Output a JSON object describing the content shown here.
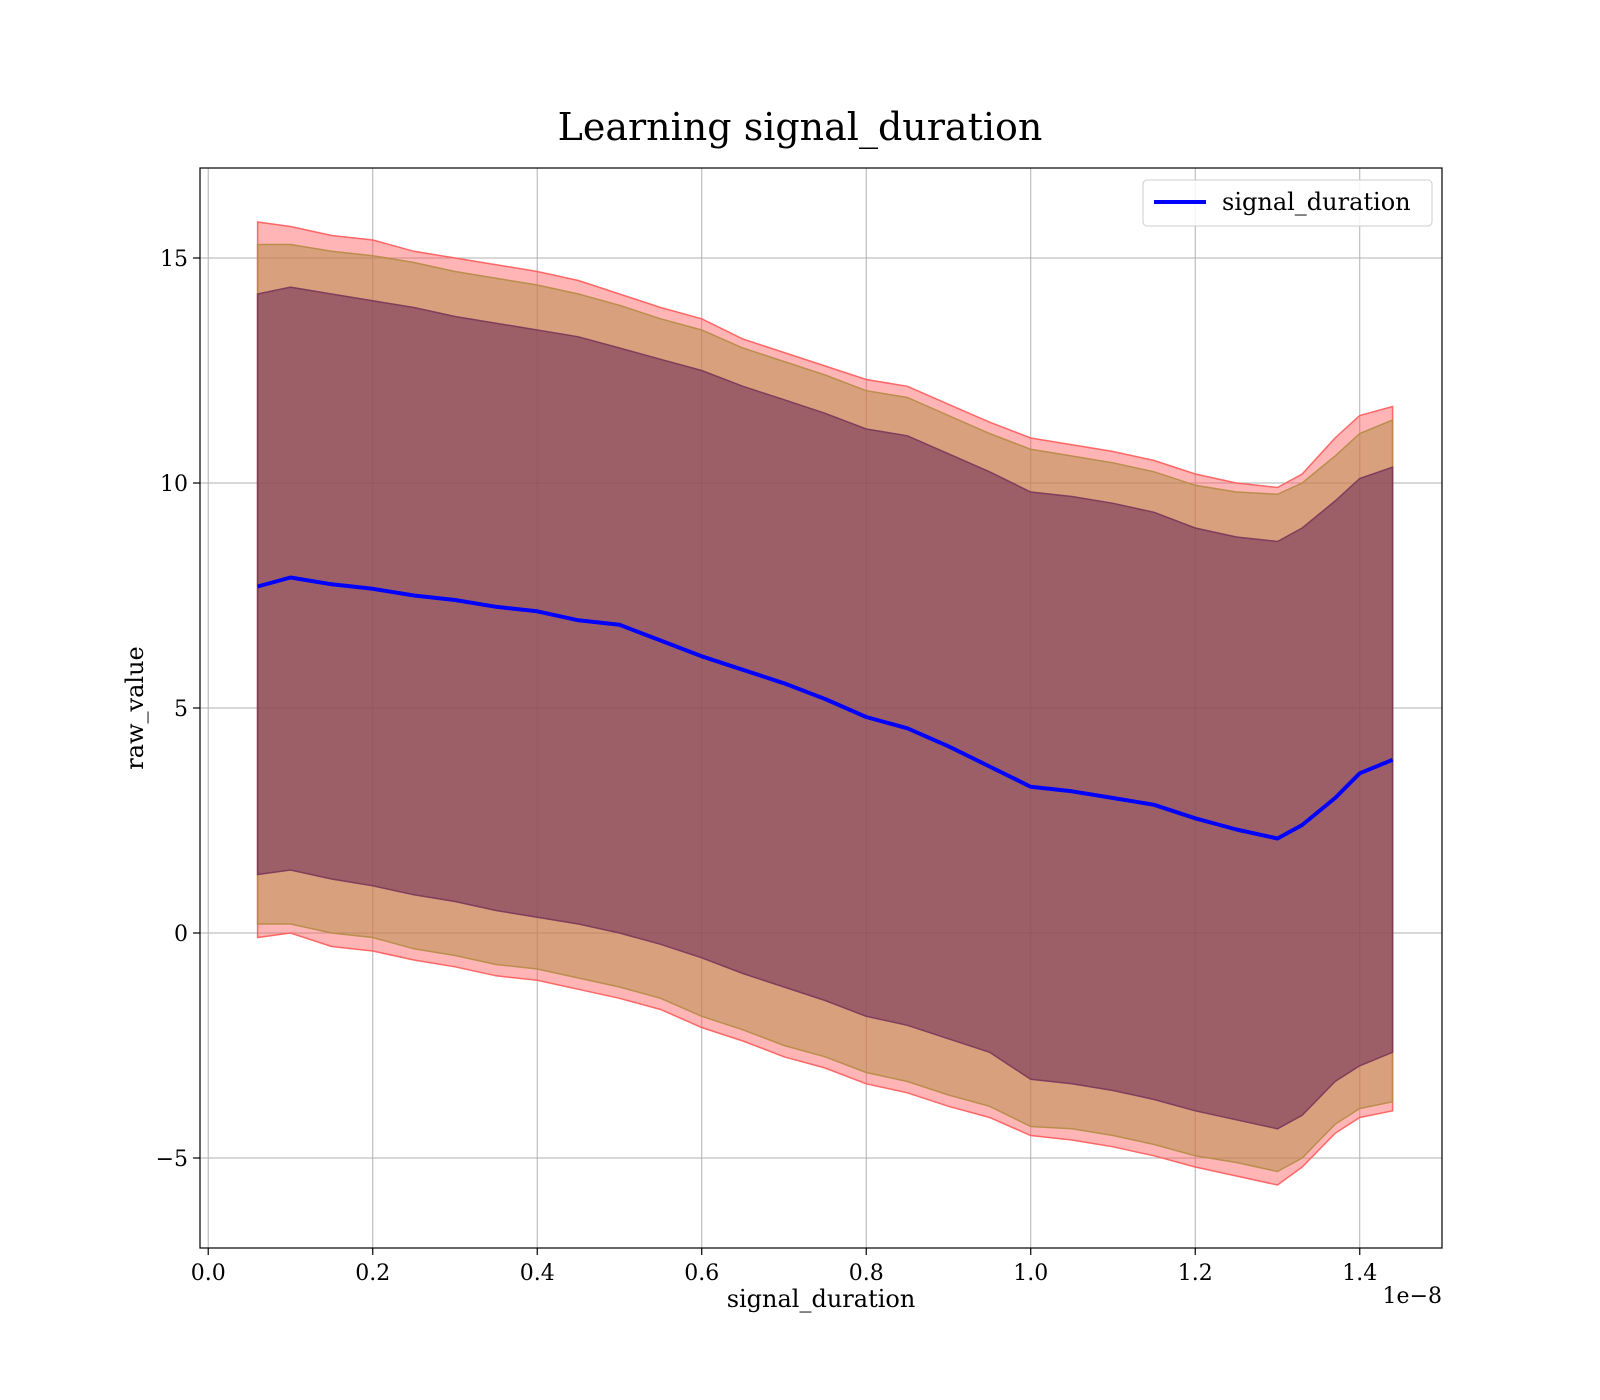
{
  "chart_data": {
    "type": "line",
    "title": "Learning signal_duration",
    "xlabel": "signal_duration",
    "ylabel": "raw_value",
    "x_offset_text": "1e−8",
    "xlim": [
      -0.01,
      1.5
    ],
    "ylim": [
      -7.0,
      17.0
    ],
    "x_ticks": [
      0.0,
      0.2,
      0.4,
      0.6,
      0.8,
      1.0,
      1.2,
      1.4
    ],
    "x_tick_labels": [
      "0.0",
      "0.2",
      "0.4",
      "0.6",
      "0.8",
      "1.0",
      "1.2",
      "1.4"
    ],
    "y_ticks": [
      -5,
      0,
      5,
      10,
      15
    ],
    "y_tick_labels": [
      "−5",
      "0",
      "5",
      "10",
      "15"
    ],
    "grid": true,
    "legend": {
      "position": "top-right",
      "entries": [
        "signal_duration"
      ]
    },
    "series": [
      {
        "name": "signal_duration",
        "color": "#0000ff",
        "x": [
          0.06,
          0.1,
          0.15,
          0.2,
          0.25,
          0.3,
          0.35,
          0.4,
          0.45,
          0.5,
          0.55,
          0.6,
          0.65,
          0.7,
          0.75,
          0.8,
          0.85,
          0.9,
          0.95,
          1.0,
          1.05,
          1.1,
          1.15,
          1.2,
          1.25,
          1.3,
          1.33,
          1.37,
          1.4,
          1.44
        ],
        "y": [
          7.7,
          7.9,
          7.75,
          7.65,
          7.5,
          7.4,
          7.25,
          7.15,
          6.95,
          6.85,
          6.5,
          6.15,
          5.85,
          5.55,
          5.2,
          4.8,
          4.55,
          4.15,
          3.7,
          3.25,
          3.15,
          3.0,
          2.85,
          2.55,
          2.3,
          2.1,
          2.4,
          3.0,
          3.55,
          3.85
        ]
      }
    ],
    "bands": [
      {
        "label": "outer",
        "color": "#ff5a5a",
        "opacity": 0.45,
        "upper": [
          15.8,
          15.7,
          15.5,
          15.4,
          15.15,
          15.0,
          14.85,
          14.7,
          14.5,
          14.2,
          13.9,
          13.65,
          13.2,
          12.9,
          12.6,
          12.3,
          12.15,
          11.75,
          11.35,
          11.0,
          10.85,
          10.7,
          10.5,
          10.2,
          10.0,
          9.9,
          10.2,
          11.0,
          11.5,
          11.7
        ],
        "lower": [
          -0.1,
          0.0,
          -0.3,
          -0.4,
          -0.6,
          -0.75,
          -0.95,
          -1.05,
          -1.25,
          -1.45,
          -1.7,
          -2.1,
          -2.4,
          -2.75,
          -3.0,
          -3.35,
          -3.55,
          -3.85,
          -4.1,
          -4.5,
          -4.6,
          -4.75,
          -4.95,
          -5.2,
          -5.4,
          -5.6,
          -5.2,
          -4.45,
          -4.1,
          -3.95
        ]
      },
      {
        "label": "middle",
        "color": "#b48c46",
        "opacity": 0.5,
        "upper": [
          15.3,
          15.3,
          15.15,
          15.05,
          14.9,
          14.7,
          14.55,
          14.4,
          14.2,
          13.95,
          13.65,
          13.4,
          13.0,
          12.7,
          12.4,
          12.05,
          11.9,
          11.5,
          11.1,
          10.75,
          10.6,
          10.45,
          10.25,
          9.95,
          9.8,
          9.75,
          10.0,
          10.6,
          11.1,
          11.4
        ],
        "lower": [
          0.2,
          0.2,
          0.0,
          -0.1,
          -0.35,
          -0.5,
          -0.7,
          -0.8,
          -1.0,
          -1.2,
          -1.45,
          -1.85,
          -2.15,
          -2.5,
          -2.75,
          -3.1,
          -3.3,
          -3.6,
          -3.85,
          -4.3,
          -4.35,
          -4.5,
          -4.7,
          -4.95,
          -5.1,
          -5.3,
          -5.0,
          -4.25,
          -3.9,
          -3.75
        ]
      },
      {
        "label": "inner",
        "color": "#78375a",
        "opacity": 0.62,
        "upper": [
          14.2,
          14.35,
          14.2,
          14.05,
          13.9,
          13.7,
          13.55,
          13.4,
          13.25,
          13.0,
          12.75,
          12.5,
          12.15,
          11.85,
          11.55,
          11.2,
          11.05,
          10.65,
          10.25,
          9.8,
          9.7,
          9.55,
          9.35,
          9.0,
          8.8,
          8.7,
          9.0,
          9.6,
          10.1,
          10.35
        ],
        "lower": [
          1.3,
          1.4,
          1.2,
          1.05,
          0.85,
          0.7,
          0.5,
          0.35,
          0.2,
          0.0,
          -0.25,
          -0.55,
          -0.9,
          -1.2,
          -1.5,
          -1.85,
          -2.05,
          -2.35,
          -2.65,
          -3.25,
          -3.35,
          -3.5,
          -3.7,
          -3.95,
          -4.15,
          -4.35,
          -4.05,
          -3.3,
          -2.95,
          -2.65
        ]
      }
    ]
  }
}
